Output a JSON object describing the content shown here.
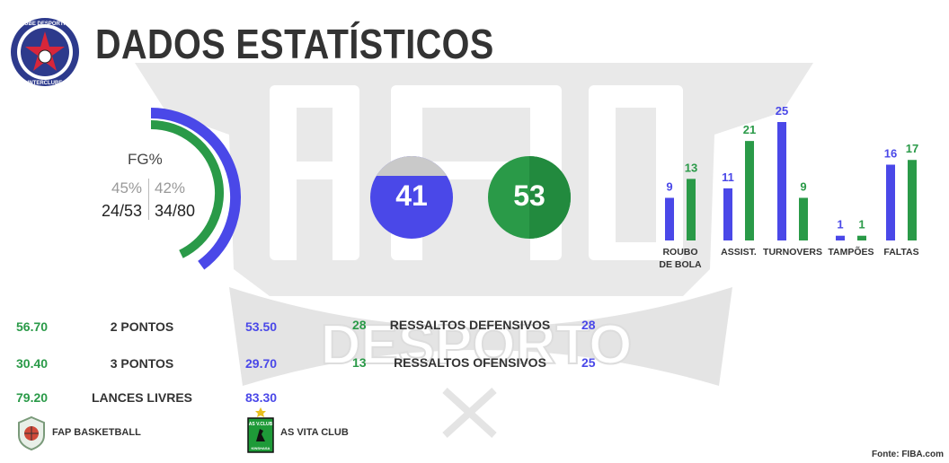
{
  "title": "DADOS ESTATÍSTICOS",
  "club_logo": {
    "icon": "interclube-crest",
    "ring_text_top": "CLUBE DESPORTIVO",
    "ring_text_bottom": "INTERCLUBE"
  },
  "watermark": {
    "text": "PAN DESPORTO",
    "icon": "pan-desporto-watermark"
  },
  "colors": {
    "team_a": "#2a9a48",
    "team_b": "#4a48e8",
    "text": "#333333"
  },
  "fg": {
    "label": "FG%",
    "team_a_pct": "45%",
    "team_b_pct": "42%",
    "team_a_made": "24/53",
    "team_b_made": "34/80",
    "team_a_fraction": 0.45,
    "team_b_fraction": 0.42
  },
  "circles": {
    "team_b_value": "41",
    "team_a_value": "53"
  },
  "chart_data": {
    "type": "bar",
    "categories": [
      "ROUBO DE BOLA",
      "ASSIST.",
      "TURNOVERS",
      "TAMPÕES",
      "FALTAS"
    ],
    "category_lines": [
      [
        "ROUBO",
        "DE BOLA"
      ],
      [
        "ASSIST."
      ],
      [
        "TURNOVERS"
      ],
      [
        "TAMPÕES"
      ],
      [
        "FALTAS"
      ]
    ],
    "series": [
      {
        "values": [
          9,
          11,
          25,
          1,
          16
        ]
      },
      {
        "values": [
          13,
          21,
          9,
          1,
          17
        ]
      }
    ],
    "ylim": [
      0,
      25
    ]
  },
  "shooting_rows": [
    {
      "team_a": "56.70",
      "label": "2 PONTOS",
      "team_b": "53.50"
    },
    {
      "team_a": "30.40",
      "label": "3 PONTOS",
      "team_b": "29.70"
    },
    {
      "team_a": "79.20",
      "label": "LANCES LIVRES",
      "team_b": "83.30"
    }
  ],
  "rebound_rows": [
    {
      "team_a": "28",
      "label": "RESSALTOS DEFENSIVOS",
      "team_b": "28"
    },
    {
      "team_a": "13",
      "label": "RESSALTOS OFENSIVOS",
      "team_b": "25"
    }
  ],
  "teams": {
    "team_a": {
      "name": "FAP BASKETBALL",
      "icon": "fap-basketball-logo"
    },
    "team_b": {
      "name": "AS VITA CLUB",
      "icon": "as-vita-club-logo",
      "logo_text_top": "AS V.CLUB",
      "logo_text_bottom": "KINSHASA"
    }
  },
  "source": "Fonte: FIBA.com"
}
